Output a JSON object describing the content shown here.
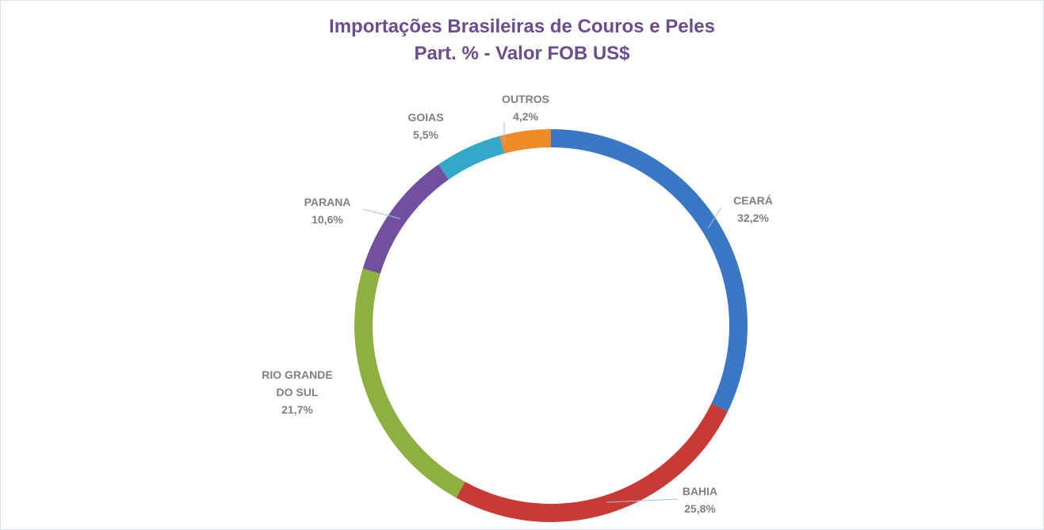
{
  "chart_data": {
    "type": "donut",
    "title": "Importações Brasileiras de Couros e Peles",
    "subtitle": "Part. % - Valor FOB US$",
    "categories": [
      "CEARÁ",
      "BAHIA",
      "RIO GRANDE DO SUL",
      "PARANA",
      "GOIAS",
      "OUTROS"
    ],
    "values": [
      32.2,
      25.8,
      21.7,
      10.6,
      5.5,
      4.2
    ],
    "value_labels": [
      "32,2%",
      "25,8%",
      "21,7%",
      "10,6%",
      "5,5%",
      "4,2%"
    ],
    "colors": [
      "#3a78c5",
      "#c93a36",
      "#8db040",
      "#7150a0",
      "#33a8c8",
      "#f08a24"
    ]
  }
}
